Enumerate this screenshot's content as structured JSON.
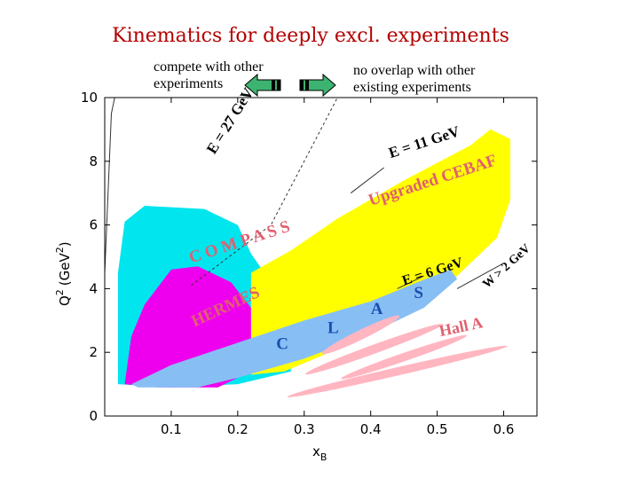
{
  "title": "Kinematics for deeply excl. experiments",
  "notes": {
    "left": [
      "compete with other",
      "experiments"
    ],
    "right": [
      "no overlap with other",
      "existing experiments"
    ]
  },
  "colors": {
    "compass": "#00e5ee",
    "hermes": "#ee00ee",
    "cebaf": "#ffff00",
    "clas": "#87bff5",
    "hallA": "#ffb6c1",
    "title": "#b30000",
    "label_red": "#e06070",
    "label_blue": "#1a4fb0",
    "arrow_green": "#3cb371"
  },
  "chart_data": {
    "type": "area",
    "title": "Kinematics for deeply excl. experiments",
    "xlabel": "x",
    "xlabel_sub": "B",
    "ylabel": "Q",
    "ylabel_sup": "2",
    "ylabel_unit": "(GeV",
    "ylabel_unit_sup": "2",
    "ylabel_unit_close": ")",
    "xlim": [
      0.0,
      0.65
    ],
    "ylim": [
      0,
      10
    ],
    "x_ticks": [
      0.1,
      0.2,
      0.3,
      0.4,
      0.5,
      0.6
    ],
    "y_ticks": [
      0,
      2,
      4,
      6,
      8,
      10
    ],
    "x_tick_labels": [
      "0.1",
      "0.2",
      "0.3",
      "0.4",
      "0.5",
      "0.6"
    ],
    "y_tick_labels": [
      "0",
      "2",
      "4",
      "6",
      "8",
      "10"
    ],
    "regions": [
      {
        "name": "COMPASS",
        "label": "C O M P A S S",
        "color": "#00e5ee",
        "points": [
          [
            0.02,
            1.0
          ],
          [
            0.02,
            4.5
          ],
          [
            0.03,
            6.1
          ],
          [
            0.06,
            6.6
          ],
          [
            0.15,
            6.5
          ],
          [
            0.2,
            6.0
          ],
          [
            0.22,
            5.1
          ],
          [
            0.25,
            4.2
          ],
          [
            0.28,
            3.6
          ],
          [
            0.28,
            1.4
          ],
          [
            0.2,
            1.0
          ],
          [
            0.1,
            0.9
          ]
        ]
      },
      {
        "name": "HERMES",
        "label": "HERMES",
        "color": "#ee00ee",
        "points": [
          [
            0.03,
            1.0
          ],
          [
            0.04,
            2.5
          ],
          [
            0.06,
            3.5
          ],
          [
            0.1,
            4.6
          ],
          [
            0.14,
            4.7
          ],
          [
            0.19,
            4.2
          ],
          [
            0.22,
            3.4
          ],
          [
            0.24,
            2.5
          ],
          [
            0.23,
            1.5
          ],
          [
            0.17,
            0.9
          ],
          [
            0.08,
            0.9
          ]
        ]
      },
      {
        "name": "Upgraded CEBAF",
        "label": "Upgraded CEBAF",
        "color": "#ffff00",
        "points": [
          [
            0.22,
            1.3
          ],
          [
            0.22,
            4.5
          ],
          [
            0.28,
            5.2
          ],
          [
            0.35,
            6.2
          ],
          [
            0.45,
            7.4
          ],
          [
            0.55,
            8.5
          ],
          [
            0.58,
            9.0
          ],
          [
            0.61,
            8.7
          ],
          [
            0.61,
            6.8
          ],
          [
            0.59,
            5.6
          ],
          [
            0.53,
            4.4
          ],
          [
            0.45,
            3.2
          ],
          [
            0.35,
            2.1
          ],
          [
            0.27,
            1.4
          ]
        ]
      },
      {
        "name": "CLAS",
        "label": "C L A S",
        "color": "#87bff5",
        "points": [
          [
            0.04,
            1.0
          ],
          [
            0.1,
            1.6
          ],
          [
            0.2,
            2.3
          ],
          [
            0.3,
            3.0
          ],
          [
            0.4,
            3.6
          ],
          [
            0.47,
            4.2
          ],
          [
            0.52,
            4.6
          ],
          [
            0.53,
            4.3
          ],
          [
            0.48,
            3.4
          ],
          [
            0.4,
            2.6
          ],
          [
            0.3,
            1.8
          ],
          [
            0.2,
            1.2
          ],
          [
            0.14,
            0.9
          ],
          [
            0.05,
            0.9
          ]
        ]
      }
    ],
    "hall_a": {
      "label": "Hall A",
      "color": "#ffb6c1",
      "bands": [
        {
          "cx": 0.385,
          "cy": 2.55,
          "rx": 0.065,
          "ry": 0.15,
          "angle_deg": -26
        },
        {
          "cx": 0.405,
          "cy": 2.1,
          "rx": 0.11,
          "ry": 0.14,
          "angle_deg": -20
        },
        {
          "cx": 0.45,
          "cy": 1.85,
          "rx": 0.1,
          "ry": 0.13,
          "angle_deg": -19
        },
        {
          "cx": 0.44,
          "cy": 1.4,
          "rx": 0.17,
          "ry": 0.13,
          "angle_deg": -13
        }
      ]
    },
    "lines": [
      {
        "name": "E = 27 GeV",
        "label": "E = 27 GeV",
        "dash": true,
        "points": [
          [
            0.13,
            4.1
          ],
          [
            0.25,
            6.0
          ],
          [
            0.35,
            10.0
          ]
        ]
      },
      {
        "name": "E = 11 GeV",
        "label": "E = 11 GeV",
        "dash": false,
        "points": [
          [
            0.37,
            7.0
          ],
          [
            0.42,
            7.8
          ]
        ]
      },
      {
        "name": "E = 6 GeV",
        "label": "E = 6 GeV",
        "dash": false,
        "points": [
          [
            0.44,
            4.0
          ],
          [
            0.48,
            4.4
          ]
        ]
      },
      {
        "name": "W > 2 GeV",
        "label": "W > 2 GeV",
        "dash": false,
        "points": [
          [
            0.53,
            4.0
          ],
          [
            0.6,
            4.8
          ]
        ]
      },
      {
        "name": "left boundary",
        "label": "",
        "dash": false,
        "points": [
          [
            0.0,
            4.5
          ],
          [
            0.01,
            9.5
          ],
          [
            0.015,
            10.0
          ]
        ]
      }
    ],
    "labels": [
      {
        "text": "E = 27 GeV",
        "x": 0.165,
        "y": 8.2,
        "angle": -58,
        "color": "#000000",
        "size": 17
      },
      {
        "text": "E = 11 GeV",
        "x": 0.43,
        "y": 8.1,
        "angle": -18,
        "color": "#000000",
        "size": 17
      },
      {
        "text": "Upgraded CEBAF",
        "x": 0.4,
        "y": 6.6,
        "angle": -18,
        "color": "#e06070",
        "size": 19
      },
      {
        "text": "C O M P A S S",
        "x": 0.13,
        "y": 4.8,
        "angle": -18,
        "color": "#e06070",
        "size": 19
      },
      {
        "text": "HERMES",
        "x": 0.135,
        "y": 2.8,
        "angle": -25,
        "color": "#e06070",
        "size": 19
      },
      {
        "text": "E = 6 GeV",
        "x": 0.45,
        "y": 4.1,
        "angle": -18,
        "color": "#000000",
        "size": 16
      },
      {
        "text": "W > 2 GeV",
        "x": 0.575,
        "y": 4.0,
        "angle": -42,
        "color": "#000000",
        "size": 14
      },
      {
        "text": "Hall A",
        "x": 0.505,
        "y": 2.5,
        "angle": -12,
        "color": "#e06070",
        "size": 18
      },
      {
        "text": "C",
        "x": 0.258,
        "y": 2.1,
        "angle": 0,
        "color": "#1a4fb0",
        "size": 19
      },
      {
        "text": "L",
        "x": 0.335,
        "y": 2.6,
        "angle": 0,
        "color": "#1a4fb0",
        "size": 19
      },
      {
        "text": "A",
        "x": 0.4,
        "y": 3.2,
        "angle": 0,
        "color": "#1a4fb0",
        "size": 19
      },
      {
        "text": "S",
        "x": 0.465,
        "y": 3.7,
        "angle": 0,
        "color": "#1a4fb0",
        "size": 19
      }
    ],
    "grid": false,
    "legend": "none"
  }
}
